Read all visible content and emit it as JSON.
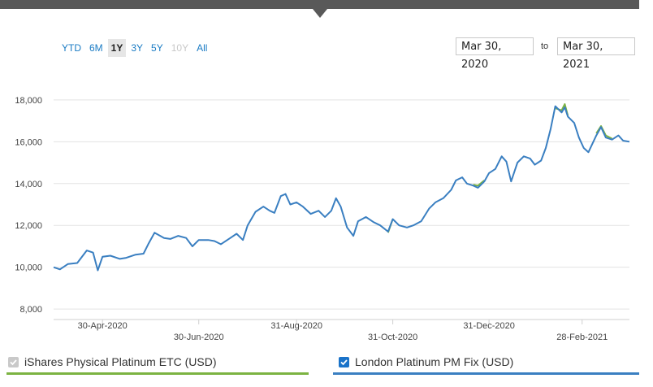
{
  "range_buttons": [
    {
      "label": "YTD",
      "state": "normal"
    },
    {
      "label": "6M",
      "state": "normal"
    },
    {
      "label": "1Y",
      "state": "active"
    },
    {
      "label": "3Y",
      "state": "normal"
    },
    {
      "label": "5Y",
      "state": "normal"
    },
    {
      "label": "10Y",
      "state": "disabled"
    },
    {
      "label": "All",
      "state": "normal"
    }
  ],
  "date_range": {
    "from": "Mar 30, 2020",
    "to_label": "to",
    "to": "Mar 30, 2021"
  },
  "legend": [
    {
      "label": "iShares Physical Platinum ETC (USD)",
      "checked": true,
      "disabled": true,
      "color": "#7cb342"
    },
    {
      "label": "London Platinum PM Fix (USD)",
      "checked": true,
      "disabled": false,
      "color": "#3a7fc1"
    }
  ],
  "colors": {
    "accent": "#1a7bc4",
    "series_etc": "#7cb342",
    "series_fix": "#3a7fc1",
    "grid": "#e3e3e3"
  },
  "chart_data": {
    "type": "line",
    "x_ticks": [
      "30-Apr-2020",
      "30-Jun-2020",
      "31-Aug-2020",
      "31-Oct-2020",
      "31-Dec-2020",
      "28-Feb-2021"
    ],
    "y_ticks": [
      "8,000",
      "10,000",
      "12,000",
      "14,000",
      "16,000",
      "18,000"
    ],
    "ylim": [
      7500,
      18500
    ],
    "xlim": [
      "2020-03-30",
      "2021-03-30"
    ],
    "grid": true,
    "legend_position": "bottom",
    "series": [
      {
        "name": "London Platinum PM Fix (USD)",
        "color": "#3a7fc1",
        "points": [
          [
            "2020-03-30",
            10000
          ],
          [
            "2020-04-03",
            9900
          ],
          [
            "2020-04-08",
            10150
          ],
          [
            "2020-04-14",
            10200
          ],
          [
            "2020-04-20",
            10800
          ],
          [
            "2020-04-24",
            10700
          ],
          [
            "2020-04-27",
            9850
          ],
          [
            "2020-04-30",
            10500
          ],
          [
            "2020-05-05",
            10550
          ],
          [
            "2020-05-11",
            10400
          ],
          [
            "2020-05-15",
            10450
          ],
          [
            "2020-05-21",
            10600
          ],
          [
            "2020-05-26",
            10650
          ],
          [
            "2020-05-29",
            11100
          ],
          [
            "2020-06-02",
            11650
          ],
          [
            "2020-06-08",
            11400
          ],
          [
            "2020-06-12",
            11350
          ],
          [
            "2020-06-17",
            11500
          ],
          [
            "2020-06-22",
            11400
          ],
          [
            "2020-06-26",
            11000
          ],
          [
            "2020-06-30",
            11300
          ],
          [
            "2020-07-06",
            11300
          ],
          [
            "2020-07-10",
            11250
          ],
          [
            "2020-07-14",
            11100
          ],
          [
            "2020-07-20",
            11400
          ],
          [
            "2020-07-24",
            11600
          ],
          [
            "2020-07-28",
            11300
          ],
          [
            "2020-07-31",
            12000
          ],
          [
            "2020-08-05",
            12650
          ],
          [
            "2020-08-10",
            12900
          ],
          [
            "2020-08-14",
            12700
          ],
          [
            "2020-08-17",
            12600
          ],
          [
            "2020-08-21",
            13400
          ],
          [
            "2020-08-24",
            13500
          ],
          [
            "2020-08-27",
            13000
          ],
          [
            "2020-08-31",
            13100
          ],
          [
            "2020-09-04",
            12900
          ],
          [
            "2020-09-09",
            12550
          ],
          [
            "2020-09-14",
            12700
          ],
          [
            "2020-09-18",
            12400
          ],
          [
            "2020-09-22",
            12700
          ],
          [
            "2020-09-25",
            13300
          ],
          [
            "2020-09-28",
            12900
          ],
          [
            "2020-10-02",
            11900
          ],
          [
            "2020-10-06",
            11500
          ],
          [
            "2020-10-09",
            12200
          ],
          [
            "2020-10-14",
            12400
          ],
          [
            "2020-10-19",
            12150
          ],
          [
            "2020-10-23",
            12000
          ],
          [
            "2020-10-28",
            11700
          ],
          [
            "2020-10-31",
            12300
          ],
          [
            "2020-11-04",
            12000
          ],
          [
            "2020-11-09",
            11900
          ],
          [
            "2020-11-13",
            12000
          ],
          [
            "2020-11-18",
            12200
          ],
          [
            "2020-11-23",
            12800
          ],
          [
            "2020-11-27",
            13100
          ],
          [
            "2020-12-02",
            13300
          ],
          [
            "2020-12-07",
            13700
          ],
          [
            "2020-12-10",
            14150
          ],
          [
            "2020-12-14",
            14300
          ],
          [
            "2020-12-17",
            14000
          ],
          [
            "2020-12-21",
            13900
          ],
          [
            "2020-12-24",
            13800
          ],
          [
            "2020-12-28",
            14100
          ],
          [
            "2020-12-31",
            14500
          ],
          [
            "2021-01-04",
            14700
          ],
          [
            "2021-01-08",
            15300
          ],
          [
            "2021-01-11",
            15050
          ],
          [
            "2021-01-14",
            14100
          ],
          [
            "2021-01-18",
            15000
          ],
          [
            "2021-01-22",
            15300
          ],
          [
            "2021-01-26",
            15200
          ],
          [
            "2021-01-29",
            14900
          ],
          [
            "2021-02-02",
            15100
          ],
          [
            "2021-02-05",
            15700
          ],
          [
            "2021-02-08",
            16600
          ],
          [
            "2021-02-11",
            17700
          ],
          [
            "2021-02-15",
            17400
          ],
          [
            "2021-02-17",
            17650
          ],
          [
            "2021-02-19",
            17200
          ],
          [
            "2021-02-23",
            16900
          ],
          [
            "2021-02-26",
            16200
          ],
          [
            "2021-03-01",
            15700
          ],
          [
            "2021-03-04",
            15500
          ],
          [
            "2021-03-09",
            16300
          ],
          [
            "2021-03-12",
            16700
          ],
          [
            "2021-03-15",
            16200
          ],
          [
            "2021-03-19",
            16100
          ],
          [
            "2021-03-23",
            16300
          ],
          [
            "2021-03-26",
            16050
          ],
          [
            "2021-03-30",
            16000
          ]
        ]
      },
      {
        "name": "iShares Physical Platinum ETC (USD)",
        "color": "#7cb342",
        "points": [
          [
            "2020-10-28",
            11650
          ],
          [
            "2020-10-31",
            12300
          ],
          [
            "2020-12-21",
            13950
          ],
          [
            "2020-12-24",
            13900
          ],
          [
            "2020-12-28",
            14150
          ],
          [
            "2021-02-11",
            17600
          ],
          [
            "2021-02-15",
            17500
          ],
          [
            "2021-02-17",
            17800
          ],
          [
            "2021-02-19",
            17250
          ],
          [
            "2021-03-09",
            16400
          ],
          [
            "2021-03-12",
            16750
          ],
          [
            "2021-03-15",
            16300
          ],
          [
            "2021-03-19",
            16150
          ]
        ]
      }
    ]
  }
}
